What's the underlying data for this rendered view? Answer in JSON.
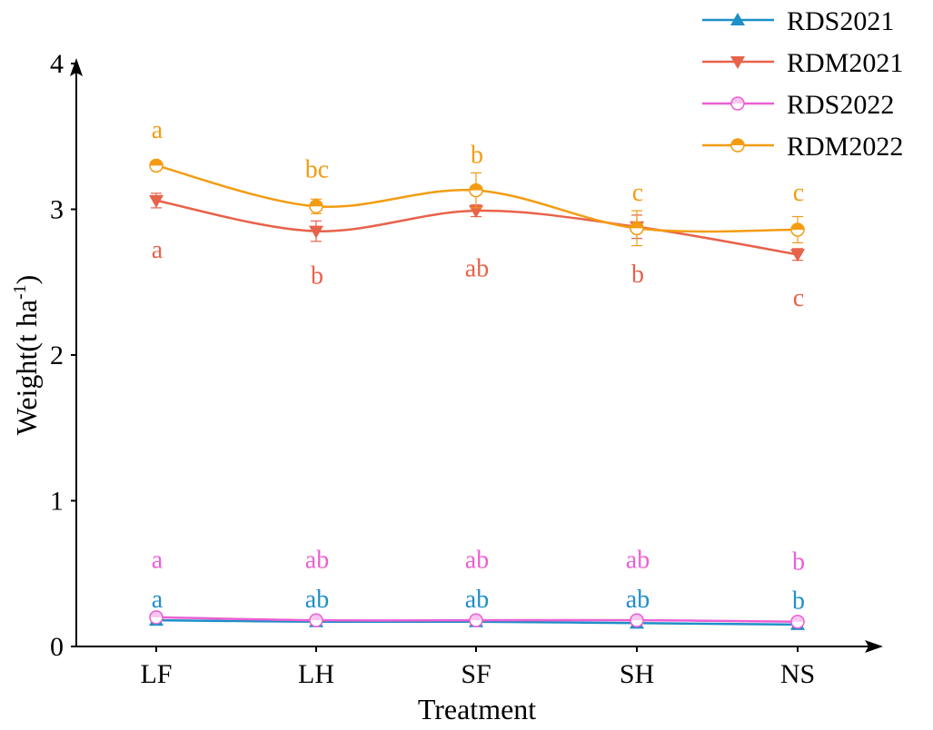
{
  "chart_data": {
    "type": "line",
    "title": "",
    "xlabel": "Treatment",
    "ylabel_main": "Weight(t ha",
    "ylabel_sup": "-1",
    "ylabel_close": ")",
    "ylim": [
      0,
      4
    ],
    "yticks": [
      "0",
      "1",
      "2",
      "3",
      "4"
    ],
    "categories": [
      "LF",
      "LH",
      "SF",
      "SH",
      "NS"
    ],
    "legend_position": "top-right",
    "series": [
      {
        "name": "RDS2021",
        "color": "#1f8fc8",
        "marker": "triangle-up",
        "values": [
          0.18,
          0.17,
          0.17,
          0.16,
          0.15
        ],
        "errors": [
          0.01,
          0.01,
          0.01,
          0.01,
          0.01
        ],
        "letters": [
          "a",
          "ab",
          "ab",
          "ab",
          "b"
        ],
        "letter_values": [
          0.33,
          0.33,
          0.33,
          0.33,
          0.32
        ]
      },
      {
        "name": "RDM2021",
        "color": "#e8624a",
        "marker": "triangle-down",
        "values": [
          3.06,
          2.85,
          2.99,
          2.88,
          2.69
        ],
        "errors": [
          0.05,
          0.07,
          0.04,
          0.08,
          0.04
        ],
        "letters": [
          "a",
          "b",
          "ab",
          "b",
          "c"
        ],
        "letter_values": [
          2.73,
          2.55,
          2.6,
          2.56,
          2.4
        ]
      },
      {
        "name": "RDS2022",
        "color": "#ec5fd4",
        "marker": "circle-half-open",
        "values": [
          0.2,
          0.18,
          0.18,
          0.18,
          0.17
        ],
        "errors": [
          0.01,
          0.01,
          0.01,
          0.01,
          0.01
        ],
        "letters": [
          "a",
          "ab",
          "ab",
          "ab",
          "b"
        ],
        "letter_values": [
          0.6,
          0.6,
          0.6,
          0.6,
          0.59
        ]
      },
      {
        "name": "RDM2022",
        "color": "#f39c12",
        "marker": "circle-half-filled",
        "values": [
          3.3,
          3.02,
          3.13,
          2.87,
          2.86
        ],
        "errors": [
          0.02,
          0.05,
          0.12,
          0.12,
          0.09
        ],
        "letters": [
          "a",
          "bc",
          "b",
          "c",
          "c"
        ],
        "letter_values": [
          3.55,
          3.28,
          3.38,
          3.12,
          3.12
        ]
      }
    ]
  }
}
